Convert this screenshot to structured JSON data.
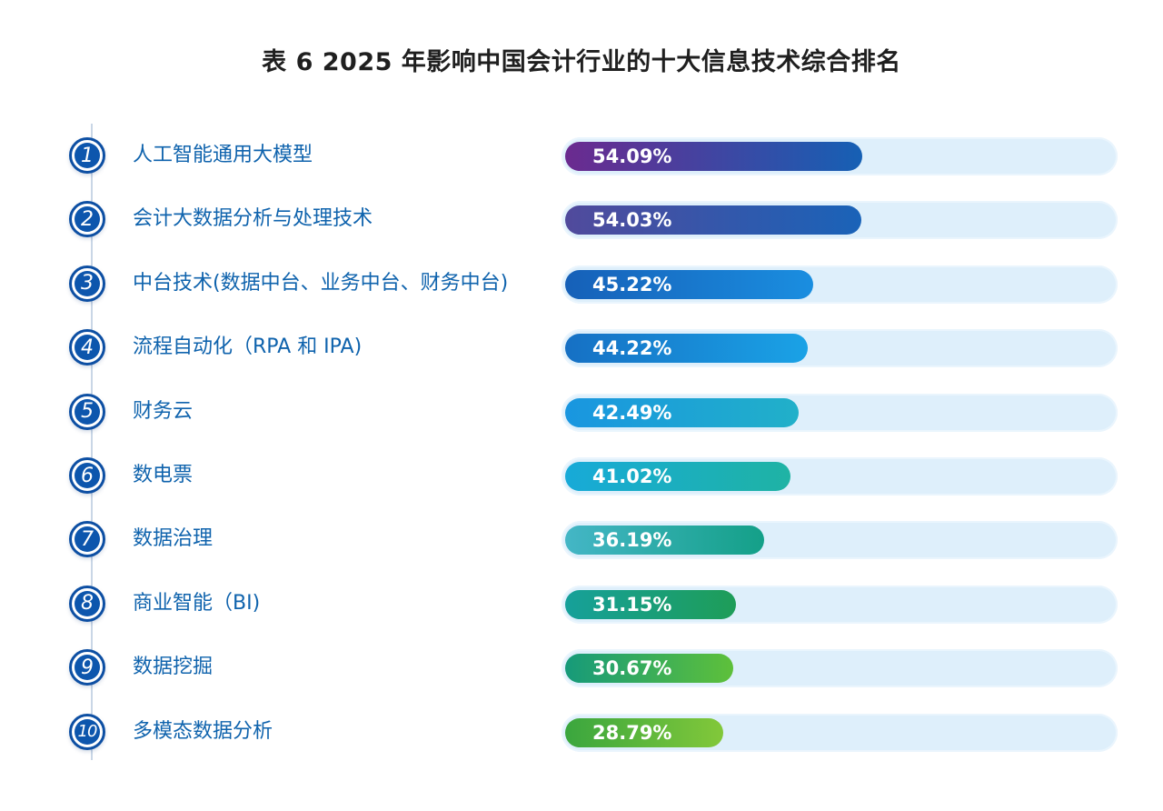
{
  "title": "表 6  2025 年影响中国会计行业的十大信息技术综合排名",
  "chart_data": {
    "type": "bar",
    "orientation": "horizontal",
    "title": "表 6  2025 年影响中国会计行业的十大信息技术综合排名",
    "xlim": [
      0,
      100
    ],
    "unit": "%",
    "ranks": [
      "1",
      "2",
      "3",
      "4",
      "5",
      "6",
      "7",
      "8",
      "9",
      "10"
    ],
    "categories": [
      "人工智能通用大模型",
      "会计大数据分析与处理技术",
      "中台技术(数据中台、业务中台、财务中台)",
      "流程自动化（RPA 和 IPA)",
      "财务云",
      "数电票",
      "数据治理",
      "商业智能（BI)",
      "数据挖掘",
      "多模态数据分析"
    ],
    "values": [
      54.09,
      54.03,
      45.22,
      44.22,
      42.49,
      41.02,
      36.19,
      31.15,
      30.67,
      28.79
    ],
    "value_labels": [
      "54.09%",
      "54.03%",
      "45.22%",
      "44.22%",
      "42.49%",
      "41.02%",
      "36.19%",
      "31.15%",
      "30.67%",
      "28.79%"
    ],
    "bar_gradients": [
      [
        "#6b2a8f",
        "#1660b4"
      ],
      [
        "#514a9c",
        "#1a63b8"
      ],
      [
        "#1660b8",
        "#1a8ee0"
      ],
      [
        "#1670c4",
        "#1aa2e6"
      ],
      [
        "#1996e0",
        "#21b0c9"
      ],
      [
        "#17aad8",
        "#1fb3a4"
      ],
      [
        "#44b6c6",
        "#14a088"
      ],
      [
        "#16a09a",
        "#1e9d58"
      ],
      [
        "#169a7a",
        "#5ec03a"
      ],
      [
        "#3aa63e",
        "#82c83a"
      ]
    ],
    "colors": {
      "title": "#1f1f1f",
      "label": "#0f63ad",
      "badge": "#0d56ad",
      "track": "#deeffb"
    }
  }
}
